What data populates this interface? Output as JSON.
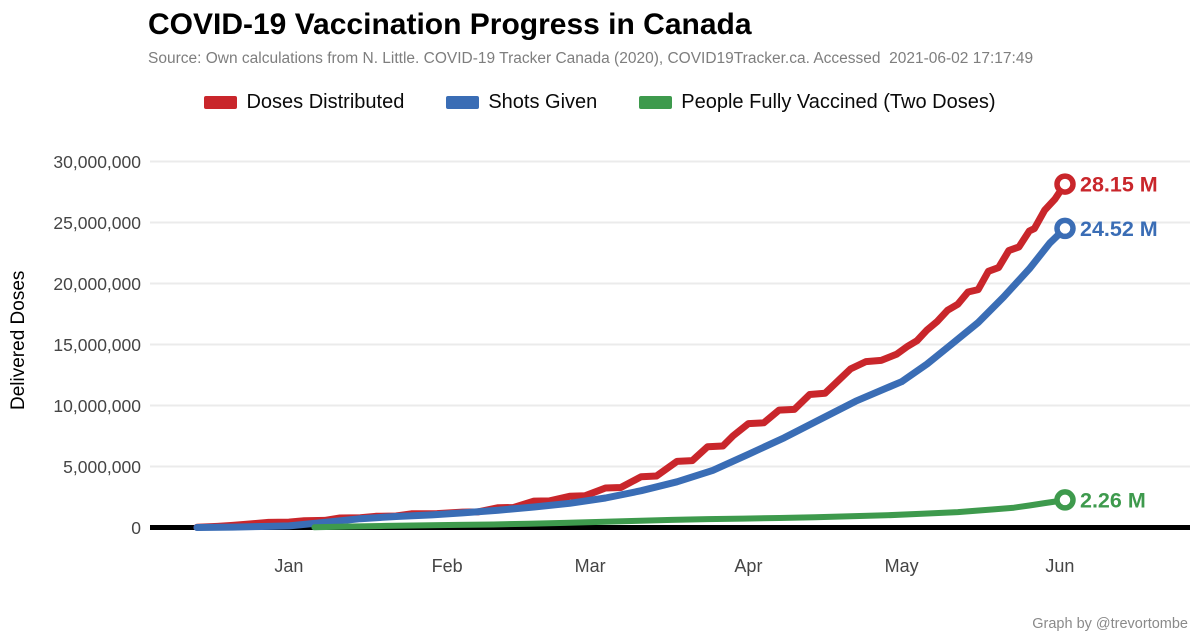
{
  "header": {
    "title": "COVID-19 Vaccination Progress in Canada",
    "subtitle": "Source: Own calculations from N. Little. COVID-19 Tracker Canada (2020), COVID19Tracker.ca. Accessed  2021-06-02 17:17:49"
  },
  "legend": {
    "items": [
      {
        "label": "Doses Distributed",
        "color": "#C9262B"
      },
      {
        "label": "Shots Given",
        "color": "#3A6DB5"
      },
      {
        "label": "People Fully Vaccined (Two Doses)",
        "color": "#3E9A4D"
      }
    ]
  },
  "caption": "Graph by @trevortombe",
  "chart_data": {
    "type": "line",
    "title": "COVID-19 Vaccination Progress in Canada",
    "xlabel": "",
    "ylabel": "Delivered Doses",
    "ylim_doses": [
      0,
      30000000
    ],
    "ylim_millions": [
      0,
      30
    ],
    "grid": "horizontal-only",
    "legend_position": "top",
    "background": "#ffffff",
    "gridline_color": "#ebebeb",
    "axis_line_color": "#000000",
    "x_unit": "days since first data point (2020-12-14), domain shown Dec to 2021-06-02",
    "x_domain_days": [
      0,
      170
    ],
    "x_ticks": [
      {
        "label": "Jan",
        "day": 18
      },
      {
        "label": "Feb",
        "day": 49
      },
      {
        "label": "Mar",
        "day": 77
      },
      {
        "label": "Apr",
        "day": 108
      },
      {
        "label": "May",
        "day": 138
      },
      {
        "label": "Jun",
        "day": 169
      }
    ],
    "y_ticks": [
      {
        "label": "0",
        "millions": 0
      },
      {
        "label": "5,000,000",
        "millions": 5
      },
      {
        "label": "10,000,000",
        "millions": 10
      },
      {
        "label": "15,000,000",
        "millions": 15
      },
      {
        "label": "20,000,000",
        "millions": 20
      },
      {
        "label": "25,000,000",
        "millions": 25
      },
      {
        "label": "30,000,000",
        "millions": 30
      }
    ],
    "series": [
      {
        "name": "Doses Distributed",
        "color": "#C9262B",
        "line_width": 7,
        "end_label": "28.15 M",
        "end_value_millions": 28.15,
        "points_day_millions": [
          [
            0,
            0.02
          ],
          [
            4,
            0.09
          ],
          [
            7,
            0.17
          ],
          [
            10,
            0.28
          ],
          [
            14,
            0.42
          ],
          [
            18,
            0.44
          ],
          [
            21,
            0.56
          ],
          [
            25,
            0.58
          ],
          [
            28,
            0.78
          ],
          [
            32,
            0.8
          ],
          [
            35,
            0.92
          ],
          [
            39,
            0.94
          ],
          [
            42,
            1.12
          ],
          [
            47,
            1.14
          ],
          [
            52,
            1.26
          ],
          [
            55,
            1.28
          ],
          [
            59,
            1.62
          ],
          [
            62,
            1.64
          ],
          [
            66,
            2.16
          ],
          [
            69,
            2.18
          ],
          [
            73,
            2.56
          ],
          [
            76,
            2.6
          ],
          [
            80,
            3.24
          ],
          [
            83,
            3.28
          ],
          [
            87,
            4.16
          ],
          [
            90,
            4.22
          ],
          [
            94,
            5.42
          ],
          [
            97,
            5.48
          ],
          [
            100,
            6.62
          ],
          [
            103,
            6.68
          ],
          [
            105,
            7.52
          ],
          [
            108,
            8.52
          ],
          [
            111,
            8.58
          ],
          [
            114,
            9.62
          ],
          [
            117,
            9.68
          ],
          [
            120,
            10.9
          ],
          [
            123,
            11.0
          ],
          [
            126,
            12.2
          ],
          [
            128,
            13.0
          ],
          [
            131,
            13.6
          ],
          [
            134,
            13.7
          ],
          [
            137,
            14.2
          ],
          [
            139,
            14.8
          ],
          [
            141,
            15.3
          ],
          [
            143,
            16.2
          ],
          [
            145,
            16.9
          ],
          [
            147,
            17.8
          ],
          [
            149,
            18.3
          ],
          [
            151,
            19.3
          ],
          [
            153,
            19.5
          ],
          [
            155,
            21.0
          ],
          [
            157,
            21.3
          ],
          [
            159,
            22.7
          ],
          [
            161,
            23.0
          ],
          [
            163,
            24.3
          ],
          [
            164,
            24.5
          ],
          [
            166,
            26.0
          ],
          [
            168,
            26.9
          ],
          [
            170,
            28.15
          ]
        ]
      },
      {
        "name": "Shots Given",
        "color": "#3A6DB5",
        "line_width": 7,
        "end_label": "24.52 M",
        "end_value_millions": 24.52,
        "points_day_millions": [
          [
            0,
            0.0
          ],
          [
            7,
            0.03
          ],
          [
            14,
            0.09
          ],
          [
            18,
            0.13
          ],
          [
            25,
            0.42
          ],
          [
            32,
            0.72
          ],
          [
            39,
            0.9
          ],
          [
            46,
            1.03
          ],
          [
            52,
            1.2
          ],
          [
            59,
            1.42
          ],
          [
            66,
            1.68
          ],
          [
            73,
            1.98
          ],
          [
            80,
            2.42
          ],
          [
            87,
            3.02
          ],
          [
            94,
            3.75
          ],
          [
            101,
            4.68
          ],
          [
            108,
            6.0
          ],
          [
            115,
            7.35
          ],
          [
            122,
            8.85
          ],
          [
            129,
            10.35
          ],
          [
            136,
            11.6
          ],
          [
            138,
            11.95
          ],
          [
            143,
            13.4
          ],
          [
            148,
            15.1
          ],
          [
            153,
            16.8
          ],
          [
            158,
            18.9
          ],
          [
            163,
            21.2
          ],
          [
            167,
            23.3
          ],
          [
            170,
            24.52
          ]
        ]
      },
      {
        "name": "People Fully Vaccined (Two Doses)",
        "color": "#3E9A4D",
        "line_width": 6,
        "end_label": "2.26 M",
        "end_value_millions": 2.26,
        "points_day_millions": [
          [
            23,
            0.02
          ],
          [
            30,
            0.08
          ],
          [
            37,
            0.13
          ],
          [
            44,
            0.17
          ],
          [
            51,
            0.21
          ],
          [
            58,
            0.25
          ],
          [
            65,
            0.31
          ],
          [
            72,
            0.38
          ],
          [
            79,
            0.46
          ],
          [
            86,
            0.54
          ],
          [
            93,
            0.62
          ],
          [
            100,
            0.69
          ],
          [
            107,
            0.73
          ],
          [
            114,
            0.78
          ],
          [
            121,
            0.84
          ],
          [
            128,
            0.92
          ],
          [
            135,
            1.0
          ],
          [
            142,
            1.12
          ],
          [
            149,
            1.26
          ],
          [
            156,
            1.48
          ],
          [
            160,
            1.62
          ],
          [
            163,
            1.8
          ],
          [
            166,
            2.0
          ],
          [
            168,
            2.12
          ],
          [
            170,
            2.26
          ]
        ]
      }
    ]
  }
}
